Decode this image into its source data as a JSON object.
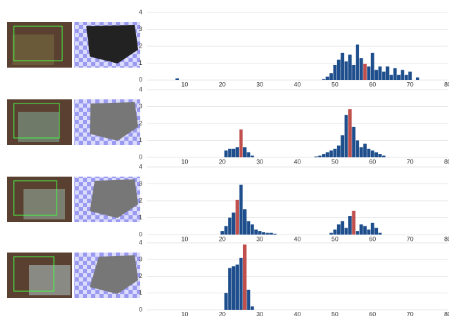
{
  "chart_data": [
    {
      "type": "bar",
      "xlim": [
        0,
        80
      ],
      "xticks": [
        10,
        20,
        30,
        40,
        50,
        60,
        70,
        80
      ],
      "ylim": [
        0,
        4
      ],
      "yticks": [
        0,
        1,
        2,
        3,
        4
      ],
      "grid": true,
      "color": "#1f4e8c",
      "highlight": {
        "x": 58,
        "color": "#c0504d"
      },
      "x": [
        8,
        47,
        48,
        49,
        50,
        51,
        52,
        53,
        54,
        55,
        56,
        57,
        58,
        59,
        60,
        61,
        62,
        63,
        64,
        65,
        66,
        67,
        68,
        69,
        70,
        72
      ],
      "values": [
        0.1,
        0.05,
        0.2,
        0.4,
        0.9,
        1.2,
        1.6,
        1.1,
        1.5,
        0.9,
        2.1,
        1.3,
        0.95,
        0.8,
        1.6,
        0.6,
        0.8,
        0.5,
        0.8,
        0.3,
        0.7,
        0.3,
        0.6,
        0.3,
        0.5,
        0.15
      ]
    },
    {
      "type": "bar",
      "xlim": [
        0,
        80
      ],
      "xticks": [
        10,
        20,
        30,
        40,
        50,
        60,
        70,
        80
      ],
      "ylim": [
        0,
        4
      ],
      "yticks": [
        0,
        1,
        2,
        3,
        4
      ],
      "grid": true,
      "color": "#1f4e8c",
      "highlight": {
        "x": [
          25,
          54
        ],
        "color": "#c0504d"
      },
      "x": [
        21,
        22,
        23,
        24,
        25,
        26,
        27,
        28,
        45,
        46,
        47,
        48,
        49,
        50,
        51,
        52,
        53,
        54,
        55,
        56,
        57,
        58,
        59,
        60,
        61,
        62,
        63
      ],
      "values": [
        0.4,
        0.5,
        0.5,
        0.6,
        1.65,
        0.6,
        0.3,
        0.1,
        0.05,
        0.1,
        0.2,
        0.3,
        0.4,
        0.5,
        0.7,
        1.3,
        2.5,
        2.85,
        1.8,
        1.0,
        0.6,
        0.8,
        0.5,
        0.4,
        0.3,
        0.2,
        0.1
      ]
    },
    {
      "type": "bar",
      "xlim": [
        0,
        80
      ],
      "xticks": [
        10,
        20,
        30,
        40,
        50,
        60,
        70,
        80
      ],
      "ylim": [
        0,
        4
      ],
      "yticks": [
        0,
        1,
        2,
        3,
        4
      ],
      "grid": true,
      "color": "#1f4e8c",
      "highlight": {
        "x": [
          24,
          55
        ],
        "color": "#c0504d"
      },
      "x": [
        20,
        21,
        22,
        23,
        24,
        25,
        26,
        27,
        28,
        29,
        30,
        31,
        32,
        33,
        34,
        49,
        50,
        51,
        52,
        53,
        54,
        55,
        56,
        57,
        58,
        59,
        60,
        61,
        62
      ],
      "values": [
        0.2,
        0.5,
        1.0,
        1.3,
        2.05,
        2.95,
        1.5,
        0.8,
        0.6,
        0.3,
        0.2,
        0.15,
        0.1,
        0.1,
        0.05,
        0.1,
        0.3,
        0.6,
        0.8,
        0.4,
        1.1,
        1.4,
        0.2,
        0.6,
        0.5,
        0.3,
        0.7,
        0.4,
        0.1
      ]
    },
    {
      "type": "bar",
      "xlim": [
        0,
        80
      ],
      "xticks": [
        10,
        20,
        30,
        40,
        50,
        60,
        70,
        80
      ],
      "ylim": [
        0,
        4
      ],
      "yticks": [
        0,
        1,
        2,
        3,
        4
      ],
      "grid": true,
      "color": "#1f4e8c",
      "highlight": {
        "x": [
          26
        ],
        "color": "#c0504d"
      },
      "x": [
        21,
        22,
        23,
        24,
        25,
        26,
        27,
        28
      ],
      "values": [
        1.0,
        2.5,
        2.6,
        2.7,
        3.1,
        3.9,
        1.2,
        0.2
      ]
    }
  ]
}
